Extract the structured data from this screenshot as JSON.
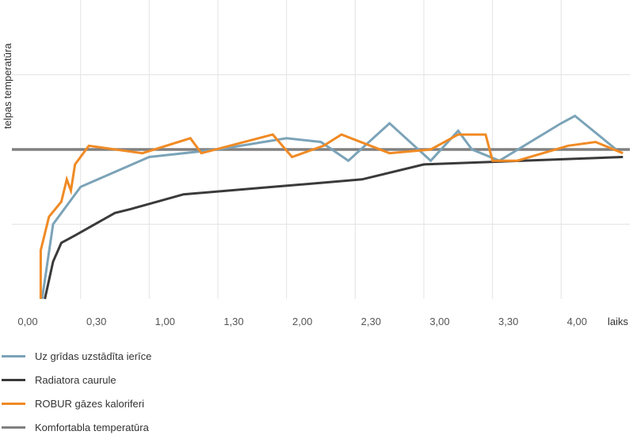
{
  "chart_data": {
    "type": "line",
    "title": "",
    "xlabel": "laiks",
    "ylabel": "telpas temperatūra",
    "x_ticks": [
      "0,00",
      "0,30",
      "1,00",
      "1,30",
      "2,00",
      "2,30",
      "3,00",
      "3,30",
      "4,00"
    ],
    "xlim": [
      0,
      4.5
    ],
    "ylim": [
      0,
      4
    ],
    "grid": true,
    "legend_position": "bottom-left",
    "series": [
      {
        "name": "Uz grīdas uzstādīta ierīce",
        "color": "#7ba3b8",
        "x": [
          0.22,
          0.3,
          0.5,
          1.0,
          1.5,
          2.0,
          2.25,
          2.45,
          2.75,
          3.05,
          3.25,
          3.35,
          3.55,
          4.0,
          4.1,
          4.4
        ],
        "y": [
          0.0,
          1.0,
          1.5,
          1.9,
          2.0,
          2.15,
          2.1,
          1.85,
          2.35,
          1.85,
          2.25,
          2.0,
          1.85,
          2.35,
          2.45,
          2.0
        ]
      },
      {
        "name": "Radiatora caurule",
        "color": "#3a3a3a",
        "x": [
          0.24,
          0.3,
          0.36,
          0.46,
          0.75,
          0.86,
          1.25,
          1.9,
          2.55,
          3.0,
          4.45
        ],
        "y": [
          0.0,
          0.5,
          0.75,
          0.85,
          1.15,
          1.2,
          1.4,
          1.5,
          1.6,
          1.8,
          1.9
        ]
      },
      {
        "name": "ROBUR gāzes kaloriferi",
        "color": "#f08a24",
        "x": [
          0.21,
          0.21,
          0.27,
          0.36,
          0.4,
          0.43,
          0.46,
          0.56,
          0.95,
          1.3,
          1.38,
          1.9,
          2.04,
          2.27,
          2.4,
          2.75,
          3.05,
          3.25,
          3.45,
          3.5,
          3.68,
          4.05,
          4.25,
          4.45
        ],
        "y": [
          0.0,
          0.65,
          1.1,
          1.3,
          1.6,
          1.45,
          1.8,
          2.05,
          1.95,
          2.15,
          1.95,
          2.2,
          1.9,
          2.05,
          2.2,
          1.95,
          2.0,
          2.2,
          2.2,
          1.85,
          1.85,
          2.05,
          2.1,
          1.95
        ]
      },
      {
        "name": "Komfortabla temperatūra",
        "color": "#808080",
        "x": [
          0.0,
          4.5
        ],
        "y": [
          2.0,
          2.0
        ]
      }
    ]
  }
}
